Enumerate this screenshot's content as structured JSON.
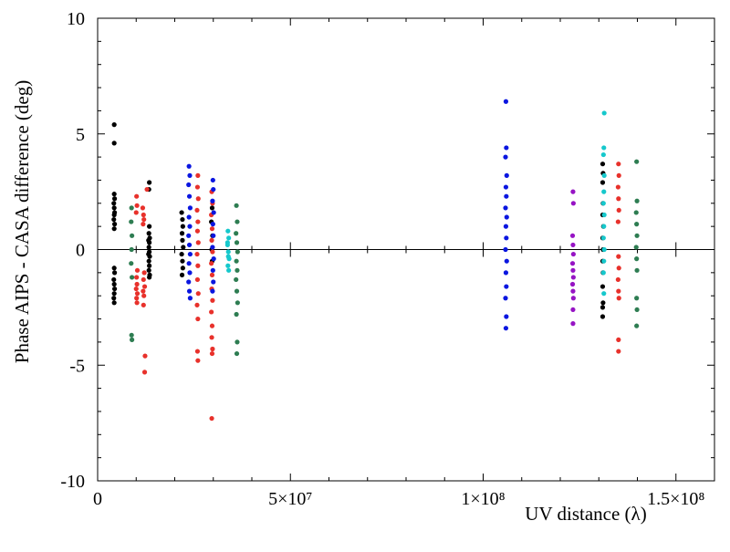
{
  "chart_data": {
    "type": "scatter",
    "title": "",
    "xlabel": "UV distance (λ)",
    "ylabel": "Phase AIPS - CASA difference (deg)",
    "xlim": [
      0,
      160000000
    ],
    "ylim": [
      -10,
      10
    ],
    "x_ticks": [
      {
        "value": 0,
        "label": "0"
      },
      {
        "value": 50000000,
        "label": "5×10⁷"
      },
      {
        "value": 100000000,
        "label": "1×10⁸"
      },
      {
        "value": 150000000,
        "label": "1.5×10⁸"
      }
    ],
    "y_ticks": [
      {
        "value": -10,
        "label": "-10"
      },
      {
        "value": -5,
        "label": "-5"
      },
      {
        "value": 0,
        "label": "0"
      },
      {
        "value": 5,
        "label": "5"
      },
      {
        "value": 10,
        "label": "10"
      }
    ],
    "zero_line": true,
    "grid": false,
    "legend": "none",
    "series": [
      {
        "name": "black",
        "color": "#000000",
        "points": [
          [
            4300000,
            5.4
          ],
          [
            4300000,
            4.6
          ],
          [
            4300000,
            2.4
          ],
          [
            4400000,
            2.2
          ],
          [
            4200000,
            2.0
          ],
          [
            4300000,
            1.8
          ],
          [
            4400000,
            1.6
          ],
          [
            4300000,
            1.5
          ],
          [
            4200000,
            1.3
          ],
          [
            4400000,
            1.1
          ],
          [
            4300000,
            0.9
          ],
          [
            4300000,
            -0.8
          ],
          [
            4400000,
            -1.0
          ],
          [
            4200000,
            -1.3
          ],
          [
            4300000,
            -1.5
          ],
          [
            4400000,
            -1.7
          ],
          [
            4300000,
            -1.9
          ],
          [
            4200000,
            -2.1
          ],
          [
            4300000,
            -2.3
          ],
          [
            13400000,
            2.9
          ],
          [
            13300000,
            2.6
          ],
          [
            13400000,
            1.0
          ],
          [
            13300000,
            0.7
          ],
          [
            13500000,
            0.5
          ],
          [
            13400000,
            0.3
          ],
          [
            13300000,
            0.1
          ],
          [
            13400000,
            -0.1
          ],
          [
            13500000,
            -0.3
          ],
          [
            13300000,
            -0.5
          ],
          [
            13400000,
            -0.7
          ],
          [
            13300000,
            -0.9
          ],
          [
            13500000,
            -1.1
          ],
          [
            13400000,
            -1.2
          ],
          [
            13200000,
            -0.2
          ],
          [
            13200000,
            0.4
          ],
          [
            21800000,
            1.6
          ],
          [
            22000000,
            1.3
          ],
          [
            22100000,
            1.0
          ],
          [
            21900000,
            0.7
          ],
          [
            22000000,
            0.4
          ],
          [
            22200000,
            0.1
          ],
          [
            21800000,
            -0.2
          ],
          [
            22000000,
            -0.5
          ],
          [
            22100000,
            -0.8
          ],
          [
            21900000,
            -1.1
          ],
          [
            29700000,
            1.8
          ],
          [
            29500000,
            1.2
          ],
          [
            29800000,
            0.6
          ],
          [
            29600000,
            0.0
          ],
          [
            29700000,
            -0.5
          ],
          [
            131000000,
            3.7
          ],
          [
            131100000,
            3.3
          ],
          [
            131000000,
            2.9
          ],
          [
            131100000,
            2.0
          ],
          [
            131000000,
            1.5
          ],
          [
            131200000,
            1.0
          ],
          [
            131000000,
            0.5
          ],
          [
            131100000,
            0.0
          ],
          [
            131000000,
            -0.5
          ],
          [
            131100000,
            -1.0
          ],
          [
            131000000,
            -1.6
          ],
          [
            131100000,
            -2.3
          ],
          [
            131000000,
            -2.5
          ],
          [
            131000000,
            -2.9
          ]
        ]
      },
      {
        "name": "red",
        "color": "#e8312b",
        "points": [
          [
            10100000,
            2.3
          ],
          [
            10200000,
            1.9
          ],
          [
            10000000,
            1.6
          ],
          [
            10300000,
            -0.9
          ],
          [
            10100000,
            -1.2
          ],
          [
            10200000,
            -1.5
          ],
          [
            10000000,
            -1.7
          ],
          [
            10300000,
            -1.9
          ],
          [
            10100000,
            -2.1
          ],
          [
            10200000,
            -2.3
          ],
          [
            11700000,
            1.8
          ],
          [
            11900000,
            1.5
          ],
          [
            12000000,
            1.3
          ],
          [
            11800000,
            1.1
          ],
          [
            12100000,
            -1.0
          ],
          [
            11900000,
            -1.3
          ],
          [
            12200000,
            -1.6
          ],
          [
            11800000,
            -1.8
          ],
          [
            12000000,
            -2.0
          ],
          [
            11900000,
            -2.4
          ],
          [
            12300000,
            -4.6
          ],
          [
            12200000,
            -5.3
          ],
          [
            12800000,
            2.6
          ],
          [
            26000000,
            3.2
          ],
          [
            25900000,
            2.7
          ],
          [
            26100000,
            2.2
          ],
          [
            25800000,
            1.7
          ],
          [
            26000000,
            1.2
          ],
          [
            25900000,
            0.8
          ],
          [
            26100000,
            0.3
          ],
          [
            25800000,
            -0.2
          ],
          [
            26000000,
            -0.7
          ],
          [
            25900000,
            -1.3
          ],
          [
            26100000,
            -1.9
          ],
          [
            25800000,
            -2.4
          ],
          [
            26000000,
            -3.0
          ],
          [
            25900000,
            -4.4
          ],
          [
            26000000,
            -4.8
          ],
          [
            29600000,
            2.5
          ],
          [
            29800000,
            2.0
          ],
          [
            29500000,
            1.5
          ],
          [
            29700000,
            0.9
          ],
          [
            29600000,
            0.4
          ],
          [
            29800000,
            -0.1
          ],
          [
            29500000,
            -0.6
          ],
          [
            29700000,
            -1.1
          ],
          [
            29600000,
            -1.7
          ],
          [
            29800000,
            -2.2
          ],
          [
            29500000,
            -2.7
          ],
          [
            29700000,
            -3.3
          ],
          [
            29600000,
            -3.8
          ],
          [
            29800000,
            -4.3
          ],
          [
            29700000,
            -4.5
          ],
          [
            29600000,
            -7.3
          ],
          [
            135100000,
            3.7
          ],
          [
            135200000,
            3.2
          ],
          [
            135000000,
            2.7
          ],
          [
            135100000,
            2.2
          ],
          [
            135200000,
            1.7
          ],
          [
            135000000,
            1.2
          ],
          [
            135100000,
            -0.3
          ],
          [
            135200000,
            -0.8
          ],
          [
            135000000,
            -1.3
          ],
          [
            135100000,
            -1.8
          ],
          [
            135200000,
            -2.1
          ],
          [
            135100000,
            -3.9
          ],
          [
            135100000,
            -4.4
          ]
        ]
      },
      {
        "name": "blue",
        "color": "#0a16e0",
        "points": [
          [
            23700000,
            3.6
          ],
          [
            23900000,
            3.2
          ],
          [
            23600000,
            2.8
          ],
          [
            23800000,
            2.3
          ],
          [
            24000000,
            1.8
          ],
          [
            23700000,
            1.4
          ],
          [
            23900000,
            1.0
          ],
          [
            23600000,
            0.6
          ],
          [
            23800000,
            0.2
          ],
          [
            24000000,
            -0.2
          ],
          [
            23700000,
            -0.6
          ],
          [
            23900000,
            -1.0
          ],
          [
            23600000,
            -1.4
          ],
          [
            23800000,
            -1.8
          ],
          [
            24000000,
            -2.1
          ],
          [
            29900000,
            3.0
          ],
          [
            30000000,
            2.6
          ],
          [
            29800000,
            2.1
          ],
          [
            30100000,
            1.6
          ],
          [
            29900000,
            1.1
          ],
          [
            30000000,
            0.6
          ],
          [
            29800000,
            0.1
          ],
          [
            30100000,
            -0.4
          ],
          [
            29900000,
            -0.9
          ],
          [
            30000000,
            -1.4
          ],
          [
            29800000,
            -1.8
          ],
          [
            105900000,
            6.4
          ],
          [
            106000000,
            4.4
          ],
          [
            105800000,
            4.0
          ],
          [
            106100000,
            3.2
          ],
          [
            105900000,
            2.7
          ],
          [
            106000000,
            2.3
          ],
          [
            105800000,
            1.8
          ],
          [
            106100000,
            1.4
          ],
          [
            105900000,
            1.0
          ],
          [
            106000000,
            0.5
          ],
          [
            105800000,
            0.0
          ],
          [
            106100000,
            -0.5
          ],
          [
            105900000,
            -1.0
          ],
          [
            106000000,
            -1.6
          ],
          [
            105800000,
            -2.1
          ],
          [
            106000000,
            -2.9
          ],
          [
            105900000,
            -3.4
          ]
        ]
      },
      {
        "name": "cyan",
        "color": "#16c8cc",
        "points": [
          [
            33800000,
            0.8
          ],
          [
            34000000,
            0.5
          ],
          [
            33700000,
            0.2
          ],
          [
            33900000,
            -0.1
          ],
          [
            34100000,
            -0.4
          ],
          [
            33800000,
            -0.7
          ],
          [
            34000000,
            -0.9
          ],
          [
            33700000,
            0.3
          ],
          [
            33900000,
            -0.3
          ],
          [
            131400000,
            5.9
          ],
          [
            131300000,
            4.4
          ],
          [
            131200000,
            4.1
          ],
          [
            131400000,
            3.2
          ],
          [
            131300000,
            2.5
          ],
          [
            131200000,
            2.0
          ],
          [
            131400000,
            1.5
          ],
          [
            131300000,
            1.0
          ],
          [
            131200000,
            0.5
          ],
          [
            131400000,
            0.0
          ],
          [
            131300000,
            -0.5
          ],
          [
            131200000,
            -1.0
          ],
          [
            131300000,
            -1.9
          ]
        ]
      },
      {
        "name": "green",
        "color": "#2e7d52",
        "points": [
          [
            8800000,
            1.8
          ],
          [
            8700000,
            1.2
          ],
          [
            8900000,
            0.6
          ],
          [
            8800000,
            0.0
          ],
          [
            8700000,
            -0.6
          ],
          [
            8900000,
            -1.2
          ],
          [
            8800000,
            -3.7
          ],
          [
            8900000,
            -3.9
          ],
          [
            36000000,
            1.9
          ],
          [
            36200000,
            1.2
          ],
          [
            35900000,
            0.7
          ],
          [
            36100000,
            0.3
          ],
          [
            36300000,
            -0.1
          ],
          [
            36000000,
            -0.5
          ],
          [
            36200000,
            -0.9
          ],
          [
            35900000,
            -1.3
          ],
          [
            36100000,
            -1.8
          ],
          [
            36300000,
            -2.3
          ],
          [
            36000000,
            -2.8
          ],
          [
            36200000,
            -4.0
          ],
          [
            36100000,
            -4.5
          ],
          [
            139800000,
            3.8
          ],
          [
            139900000,
            2.1
          ],
          [
            139700000,
            1.6
          ],
          [
            139800000,
            1.1
          ],
          [
            139900000,
            0.6
          ],
          [
            139700000,
            0.1
          ],
          [
            139800000,
            -0.4
          ],
          [
            139900000,
            -0.9
          ],
          [
            139800000,
            -2.1
          ],
          [
            139900000,
            -2.6
          ],
          [
            139800000,
            -3.3
          ]
        ]
      },
      {
        "name": "purple",
        "color": "#9614c4",
        "points": [
          [
            123300000,
            2.5
          ],
          [
            123400000,
            2.0
          ],
          [
            123200000,
            0.6
          ],
          [
            123300000,
            0.2
          ],
          [
            123400000,
            -0.2
          ],
          [
            123200000,
            -0.6
          ],
          [
            123300000,
            -0.9
          ],
          [
            123400000,
            -1.2
          ],
          [
            123200000,
            -1.5
          ],
          [
            123300000,
            -1.8
          ],
          [
            123400000,
            -2.1
          ],
          [
            123300000,
            -2.6
          ],
          [
            123300000,
            -3.2
          ]
        ]
      }
    ]
  }
}
